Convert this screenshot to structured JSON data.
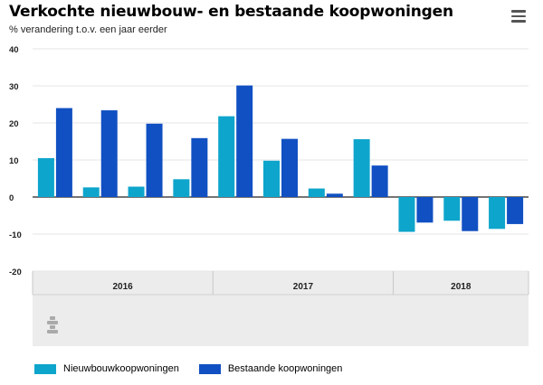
{
  "header": {
    "title": "Verkochte nieuwbouw- en bestaande koopwoningen",
    "subtitle": "% verandering t.o.v. een jaar eerder"
  },
  "menu": {
    "icon": "hamburger-menu-icon"
  },
  "footer": {
    "logo_icon": "cbs-logo-icon"
  },
  "colors": {
    "nieuwbouw": "#0ea5cc",
    "bestaande": "#1150c2",
    "axis_band": "#ececec",
    "grid": "#e6e6e6"
  },
  "chart_data": {
    "type": "bar",
    "title": "Verkochte nieuwbouw- en bestaande koopwoningen",
    "subtitle": "% verandering t.o.v. een jaar eerder",
    "ylim": [
      -20,
      40
    ],
    "yticks": [
      -20,
      -10,
      0,
      10,
      20,
      30,
      40
    ],
    "grid": true,
    "year_labels": [
      "2016",
      "2017",
      "2018"
    ],
    "year_quarter_counts": [
      4,
      4,
      3
    ],
    "series": [
      {
        "name": "Nieuwbouwkoopwoningen",
        "values": [
          10.5,
          2.6,
          2.8,
          4.8,
          21.8,
          9.8,
          2.3,
          15.6,
          -9.4,
          -6.4,
          -8.6
        ]
      },
      {
        "name": "Bestaande koopwoningen",
        "values": [
          24.0,
          23.4,
          19.8,
          15.9,
          30.1,
          15.7,
          0.9,
          8.5,
          -6.9,
          -9.2,
          -7.3
        ]
      }
    ],
    "legend": {
      "position": "bottom-left"
    }
  }
}
